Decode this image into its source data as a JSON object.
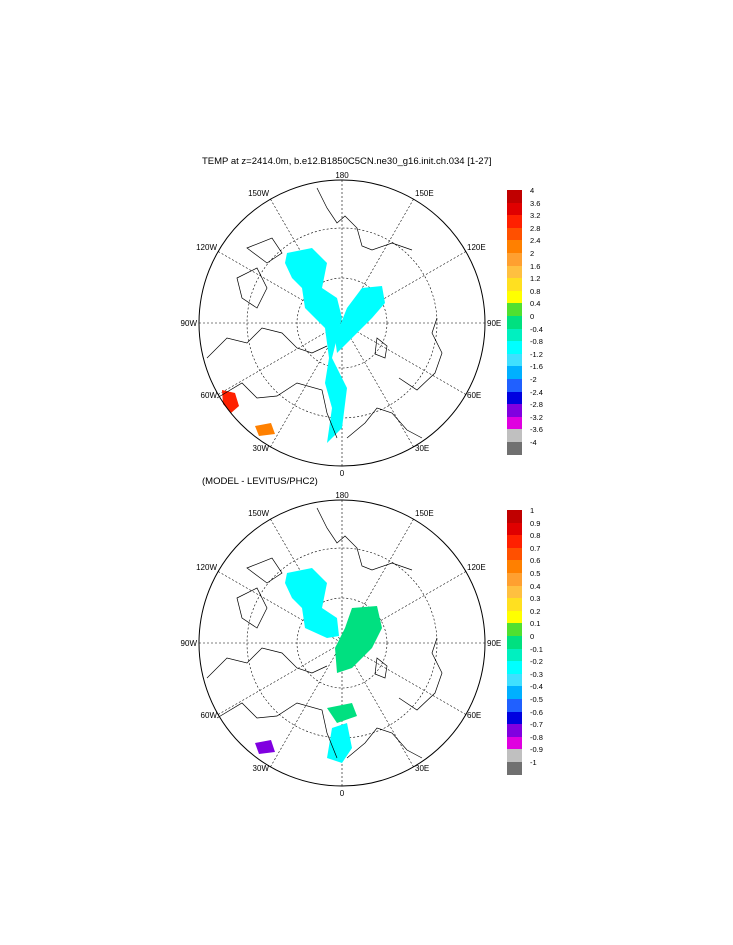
{
  "panels": [
    {
      "title": "TEMP at z=2414.0m, b.e12.B1850C5CN.ne30_g16.init.ch.034 [1-27]",
      "lon_labels": {
        "top": "180",
        "bottom": "0",
        "left": "90W",
        "right": "90E",
        "nw": "150W",
        "ne": "150E",
        "wnw": "120W",
        "ene": "120E",
        "wsw": "60W",
        "ese": "60E",
        "sw": "30W",
        "se": "30E"
      },
      "colorbar": {
        "labels": [
          "4",
          "3.6",
          "3.2",
          "2.8",
          "2.4",
          "2",
          "1.6",
          "1.2",
          "0.8",
          "0.4",
          "0",
          "-0.4",
          "-0.8",
          "-1.2",
          "-1.6",
          "-2",
          "-2.4",
          "-2.8",
          "-3.2",
          "-3.6",
          "-4"
        ],
        "colors": [
          "#c00000",
          "#e00000",
          "#ff2000",
          "#ff5000",
          "#ff8000",
          "#ffa030",
          "#ffc040",
          "#ffe020",
          "#ffff00",
          "#50e030",
          "#00e080",
          "#00f0c0",
          "#00ffff",
          "#40e0ff",
          "#00b0ff",
          "#2060ff",
          "#0000e0",
          "#8000e0",
          "#e000e0",
          "#c0c0c0",
          "#707070"
        ]
      },
      "fields": [
        {
          "color_index": 12,
          "label": "anomaly-cyan"
        },
        {
          "color_index": 2,
          "label": "anomaly-red"
        },
        {
          "color_index": 4,
          "label": "anomaly-orange"
        }
      ]
    },
    {
      "title": "(MODEL - LEVITUS/PHC2)",
      "lon_labels": {
        "top": "180",
        "bottom": "0",
        "left": "90W",
        "right": "90E",
        "nw": "150W",
        "ne": "150E",
        "wnw": "120W",
        "ene": "120E",
        "wsw": "60W",
        "ese": "60E",
        "sw": "30W",
        "se": "30E"
      },
      "colorbar": {
        "labels": [
          "1",
          "0.9",
          "0.8",
          "0.7",
          "0.6",
          "0.5",
          "0.4",
          "0.3",
          "0.2",
          "0.1",
          "0",
          "-0.1",
          "-0.2",
          "-0.3",
          "-0.4",
          "-0.5",
          "-0.6",
          "-0.7",
          "-0.8",
          "-0.9",
          "-1"
        ],
        "colors": [
          "#c00000",
          "#e00000",
          "#ff2000",
          "#ff5000",
          "#ff8000",
          "#ffa030",
          "#ffc040",
          "#ffe020",
          "#ffff00",
          "#50e030",
          "#00e080",
          "#00f0c0",
          "#00ffff",
          "#40e0ff",
          "#00b0ff",
          "#2060ff",
          "#0000e0",
          "#8000e0",
          "#e000e0",
          "#c0c0c0",
          "#707070"
        ]
      },
      "fields": [
        {
          "color_index": 12,
          "label": "diff-cyan"
        },
        {
          "color_index": 10,
          "label": "diff-green"
        },
        {
          "color_index": 17,
          "label": "diff-purple"
        }
      ]
    }
  ]
}
